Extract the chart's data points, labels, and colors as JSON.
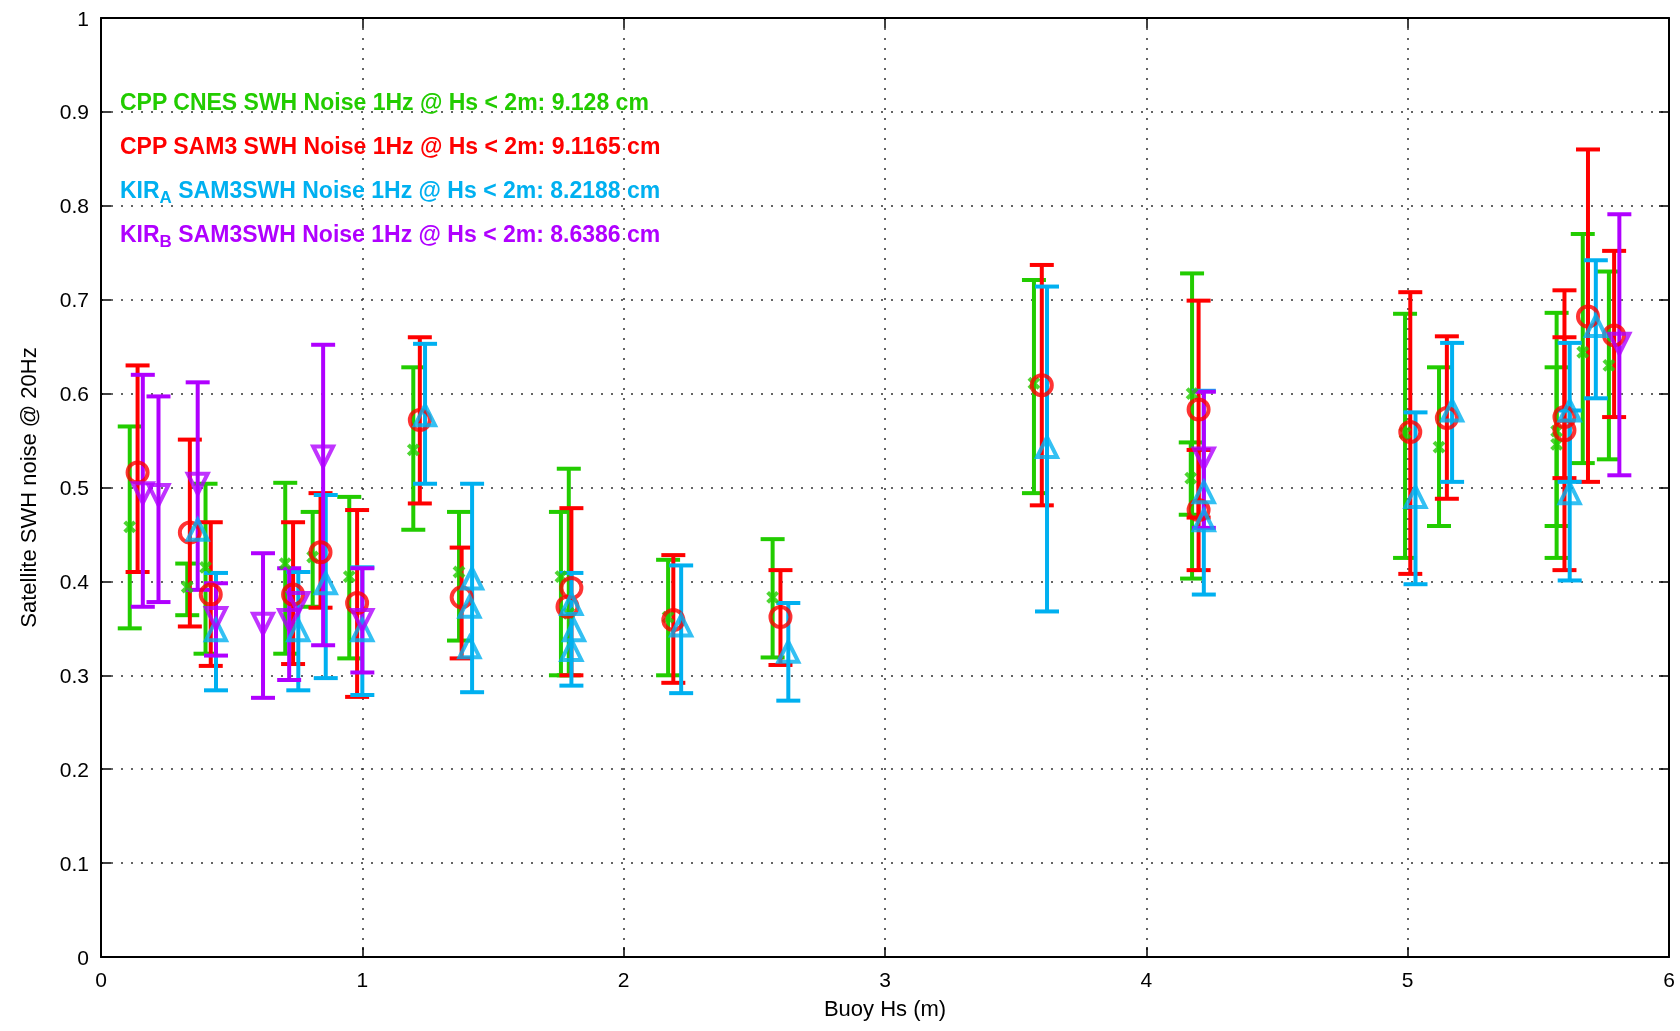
{
  "chart_data": {
    "type": "scatter",
    "xlabel": "Buoy Hs (m)",
    "ylabel": "Satellite SWH noise @ 20Hz",
    "xlim": [
      0,
      6
    ],
    "xticks": [
      0,
      1,
      2,
      3,
      4,
      5,
      6
    ],
    "ylim": [
      0,
      1
    ],
    "yticks": [
      0,
      0.1,
      0.2,
      0.3,
      0.4,
      0.5,
      0.6,
      0.7,
      0.8,
      0.9,
      1
    ],
    "grid": true,
    "legend": "top left",
    "series": [
      {
        "name": "CPP CNES SWH Noise 1Hz @ Hs < 2m: 9.128 cm",
        "color": "#22cc00",
        "marker": "cross",
        "x": [
          0.11,
          0.33,
          0.4,
          0.705,
          0.81,
          0.95,
          1.195,
          1.37,
          1.76,
          1.79,
          2.17,
          2.57,
          3.57,
          4.175,
          4.17,
          4.99,
          5.12,
          5.57,
          5.57,
          5.67,
          5.77
        ],
        "values": [
          0.458,
          0.394,
          0.415,
          0.419,
          0.426,
          0.405,
          0.54,
          0.41,
          0.405,
          0.366,
          0.362,
          0.383,
          0.611,
          0.6,
          0.51,
          0.558,
          0.543,
          0.546,
          0.56,
          0.644,
          0.63
        ],
        "errors": [
          [
            0.35,
            0.565
          ],
          [
            0.364,
            0.419
          ],
          [
            0.323,
            0.504
          ],
          [
            0.323,
            0.505
          ],
          [
            0.373,
            0.474
          ],
          [
            0.318,
            0.49
          ],
          [
            0.455,
            0.628
          ],
          [
            0.337,
            0.474
          ],
          [
            0.3,
            0.474
          ],
          [
            0.3,
            0.52
          ],
          [
            0.3,
            0.423
          ],
          [
            0.319,
            0.445
          ],
          [
            0.494,
            0.721
          ],
          [
            0.403,
            0.728
          ],
          [
            0.471,
            0.548
          ],
          [
            0.425,
            0.685
          ],
          [
            0.459,
            0.628
          ],
          [
            0.425,
            0.686
          ],
          [
            0.459,
            0.628
          ],
          [
            0.526,
            0.77
          ],
          [
            0.53,
            0.73
          ]
        ]
      },
      {
        "name": "CPP SAM3 SWH Noise 1Hz @ Hs < 2m: 9.1165 cm",
        "color": "#ff0000",
        "marker": "circle",
        "x": [
          0.14,
          0.34,
          0.42,
          0.735,
          0.84,
          0.98,
          1.22,
          1.38,
          1.785,
          1.8,
          2.19,
          2.6,
          3.6,
          4.2,
          4.2,
          5.01,
          5.15,
          5.6,
          5.6,
          5.69,
          5.79
        ],
        "values": [
          0.516,
          0.452,
          0.386,
          0.386,
          0.431,
          0.377,
          0.572,
          0.383,
          0.373,
          0.393,
          0.359,
          0.362,
          0.609,
          0.583,
          0.476,
          0.559,
          0.574,
          0.561,
          0.575,
          0.682,
          0.662
        ],
        "errors": [
          [
            0.41,
            0.63
          ],
          [
            0.352,
            0.551
          ],
          [
            0.31,
            0.463
          ],
          [
            0.312,
            0.463
          ],
          [
            0.372,
            0.494
          ],
          [
            0.277,
            0.476
          ],
          [
            0.483,
            0.66
          ],
          [
            0.318,
            0.436
          ],
          null,
          [
            0.3,
            0.478
          ],
          [
            0.292,
            0.428
          ],
          [
            0.311,
            0.412
          ],
          [
            0.481,
            0.737
          ],
          [
            0.412,
            0.699
          ],
          [
            0.468,
            0.54
          ],
          [
            0.408,
            0.708
          ],
          [
            0.488,
            0.661
          ],
          [
            0.412,
            0.71
          ],
          [
            0.51,
            0.66
          ],
          [
            0.506,
            0.86
          ],
          [
            0.575,
            0.752
          ]
        ]
      },
      {
        "name": "KIR$_{A}$ SAM3SWH Noise 1Hz @ Hs < 2m: 8.2188 cm",
        "color": "#00b0f0",
        "marker": "triangle",
        "x": [
          0.37,
          0.44,
          0.755,
          0.86,
          1.0,
          1.24,
          1.42,
          1.41,
          1.41,
          1.8,
          1.81,
          1.8,
          2.22,
          2.63,
          3.62,
          4.22,
          4.22,
          5.03,
          5.17,
          5.62,
          5.62,
          5.72
        ],
        "values": [
          0.455,
          0.348,
          0.348,
          0.398,
          0.348,
          0.577,
          0.403,
          0.373,
          0.33,
          0.376,
          0.348,
          0.327,
          0.353,
          0.325,
          0.543,
          0.495,
          0.465,
          0.49,
          0.582,
          0.582,
          0.494,
          0.672
        ],
        "errors": [
          null,
          [
            0.284,
            0.409
          ],
          [
            0.284,
            0.41
          ],
          [
            0.297,
            0.492
          ],
          [
            0.279,
            0.415
          ],
          [
            0.504,
            0.653
          ],
          [
            0.282,
            0.504
          ],
          null,
          null,
          [
            0.289,
            0.409
          ],
          null,
          null,
          [
            0.281,
            0.417
          ],
          [
            0.273,
            0.377
          ],
          [
            0.368,
            0.714
          ],
          [
            0.386,
            0.603
          ],
          null,
          [
            0.397,
            0.58
          ],
          [
            0.506,
            0.654
          ],
          [
            0.506,
            0.654
          ],
          [
            0.401,
            0.582
          ],
          [
            0.595,
            0.742
          ]
        ]
      },
      {
        "name": "KIR$_{B}$ SAM3SWH Noise 1Hz @ Hs < 2m: 8.6386 cm",
        "color": "#b000ff",
        "marker": "triangle-down",
        "x": [
          0.16,
          0.22,
          0.37,
          0.44,
          0.62,
          0.72,
          0.755,
          0.85,
          1.0,
          4.22,
          5.81
        ],
        "values": [
          0.494,
          0.492,
          0.504,
          0.361,
          0.355,
          0.359,
          0.377,
          0.533,
          0.359,
          0.531,
          0.653
        ],
        "errors": [
          [
            0.373,
            0.62
          ],
          [
            0.378,
            0.597
          ],
          [
            0.391,
            0.612
          ],
          [
            0.321,
            0.398
          ],
          [
            0.276,
            0.43
          ],
          [
            0.295,
            0.414
          ],
          null,
          [
            0.332,
            0.652
          ],
          [
            0.303,
            0.414
          ],
          [
            0.457,
            0.602
          ],
          [
            0.513,
            0.791
          ]
        ]
      }
    ]
  }
}
